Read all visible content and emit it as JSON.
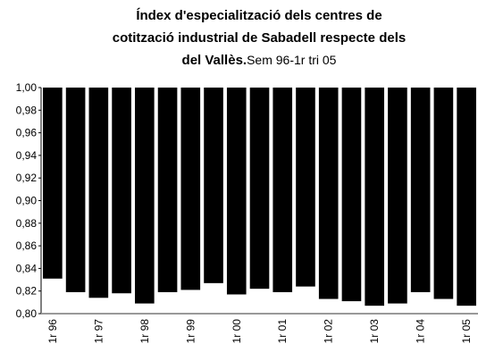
{
  "chart_data": {
    "type": "bar",
    "title_lines": [
      "Índex d'especialització dels centres de",
      "cotització industrial de Sabadell respecte dels",
      "del Vallès."
    ],
    "subtitle": "Sem 96-1r tri 05",
    "categories": [
      "1r 96",
      null,
      "1r 97",
      null,
      "1r 98",
      null,
      "1r 99",
      null,
      "1r 00",
      null,
      "1r 01",
      null,
      "1r 02",
      null,
      "1r 03",
      null,
      "1r 04",
      null,
      "1r 05"
    ],
    "values": [
      0.831,
      0.819,
      0.814,
      0.818,
      0.809,
      0.819,
      0.821,
      0.827,
      0.817,
      0.822,
      0.819,
      0.824,
      0.813,
      0.811,
      0.807,
      0.809,
      0.819,
      0.813,
      0.807
    ],
    "color": "#000000",
    "ylim": [
      0.8,
      1.0
    ],
    "yticks": [
      {
        "value": 0.8,
        "label": "0,80"
      },
      {
        "value": 0.82,
        "label": "0,82"
      },
      {
        "value": 0.84,
        "label": "0,84"
      },
      {
        "value": 0.86,
        "label": "0,86"
      },
      {
        "value": 0.88,
        "label": "0,88"
      },
      {
        "value": 0.9,
        "label": "0,90"
      },
      {
        "value": 0.92,
        "label": "0,92"
      },
      {
        "value": 0.94,
        "label": "0,94"
      },
      {
        "value": 0.96,
        "label": "0,96"
      },
      {
        "value": 0.98,
        "label": "0,98"
      },
      {
        "value": 1.0,
        "label": "1,00"
      }
    ]
  }
}
